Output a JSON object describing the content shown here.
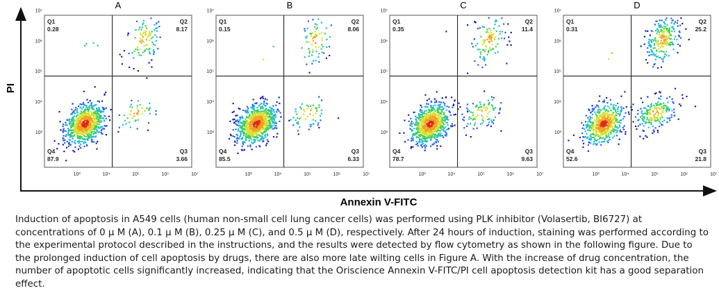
{
  "chart_data": {
    "type": "scatter",
    "subtype": "flow-cytometry-density-dot-plot",
    "xlabel": "Annexin V-FITC",
    "ylabel": "PI",
    "xscale": "log",
    "yscale": "log",
    "x_tick_labels": [
      "10³",
      "10⁴",
      "10⁵",
      "10⁶",
      "10⁷"
    ],
    "y_tick_labels": [
      "10³",
      "10⁴",
      "10⁵",
      "10⁶",
      "10⁷"
    ],
    "xlim": [
      100,
      10000000
    ],
    "ylim": [
      100,
      10000000
    ],
    "gate_x": 20000,
    "gate_y": 100000,
    "colors": [
      "#1a1fa8",
      "#2a5fe0",
      "#20b8e0",
      "#3ecf60",
      "#d8e030",
      "#f2a020",
      "#e02818"
    ],
    "panels": [
      {
        "title": "A",
        "quadrants": {
          "Q1": "0.28",
          "Q2": "8.17",
          "Q3": "3.66",
          "Q4": "87.9"
        }
      },
      {
        "title": "B",
        "quadrants": {
          "Q1": "0.15",
          "Q2": "8.06",
          "Q3": "6.33",
          "Q4": "85.5"
        }
      },
      {
        "title": "C",
        "quadrants": {
          "Q1": "0.35",
          "Q2": "11.4",
          "Q3": "9.63",
          "Q4": "78.7"
        }
      },
      {
        "title": "D",
        "quadrants": {
          "Q1": "0.31",
          "Q2": "25.2",
          "Q3": "21.8",
          "Q4": "52.6"
        }
      }
    ]
  },
  "caption": "Induction of apoptosis in A549 cells (human non-small cell lung cancer cells) was performed using PLK inhibitor (Volasertib, BI6727) at concentrations of 0 μ M (A), 0.1 μ M (B), 0.25 μ M (C), and 0.5 μ M (D), respectively. After 24 hours of induction, staining was performed according to the experimental protocol described in the instructions, and the results were detected by flow cytometry as shown in the following figure. Due to the prolonged induction of cell apoptosis by drugs, there are also more late wilting cells in Figure A. With the increase of drug concentration, the number of apoptotic cells significantly increased, indicating that the Oriscience Annexin V-FITC/PI cell apoptosis detection kit has a good separation effect."
}
